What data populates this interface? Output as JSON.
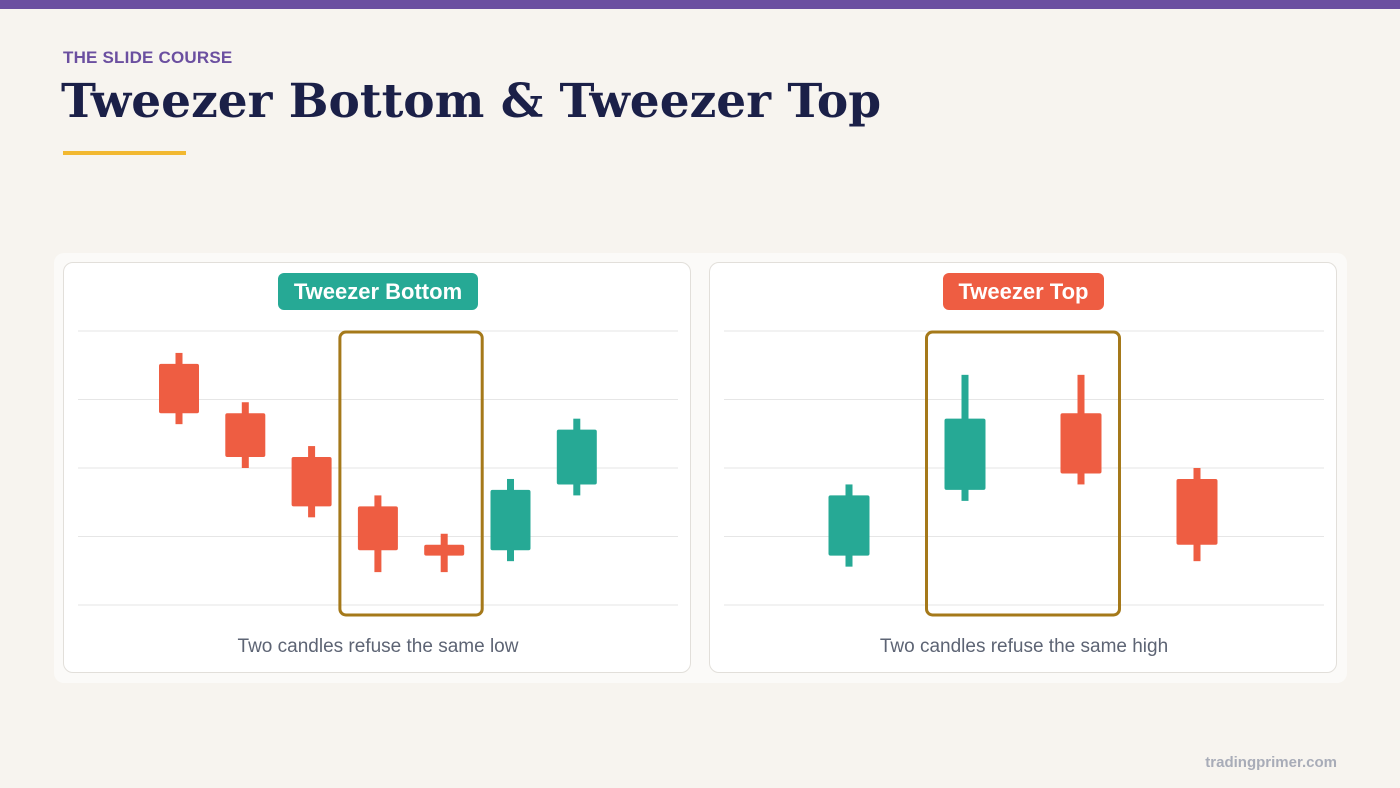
{
  "colors": {
    "accent": "#6b4fa0",
    "title": "#1b2048",
    "underline": "#f2b830",
    "bullish": "#26a995",
    "bearish": "#ee5d42",
    "highlight": "#a5791a",
    "grid": "#e6e6e6"
  },
  "header": {
    "kicker": "THE SLIDE COURSE",
    "title": "Tweezer Bottom & Tweezer Top"
  },
  "panels": [
    {
      "label": "Tweezer Bottom",
      "caption": "Two candles refuse the same low",
      "label_color": "#26a995"
    },
    {
      "label": "Tweezer Top",
      "caption": "Two candles refuse the same high",
      "label_color": "#ee5d42"
    }
  ],
  "chart_data": [
    {
      "type": "candlestick",
      "title": "Tweezer Bottom",
      "ylim": [
        0,
        100
      ],
      "candles": [
        {
          "open": 88,
          "close": 70,
          "high": 92,
          "low": 66,
          "direction": "bearish"
        },
        {
          "open": 70,
          "close": 54,
          "high": 74,
          "low": 50,
          "direction": "bearish"
        },
        {
          "open": 54,
          "close": 36,
          "high": 58,
          "low": 32,
          "direction": "bearish"
        },
        {
          "open": 36,
          "close": 20,
          "high": 40,
          "low": 12,
          "direction": "bearish"
        },
        {
          "open": 22,
          "close": 18,
          "high": 26,
          "low": 12,
          "direction": "bearish"
        },
        {
          "open": 20,
          "close": 42,
          "high": 46,
          "low": 16,
          "direction": "bullish"
        },
        {
          "open": 44,
          "close": 64,
          "high": 68,
          "low": 40,
          "direction": "bullish"
        }
      ],
      "highlight_candles": [
        3,
        4
      ]
    },
    {
      "type": "candlestick",
      "title": "Tweezer Top",
      "ylim": [
        0,
        100
      ],
      "candles": [
        {
          "open": 18,
          "close": 40,
          "high": 44,
          "low": 14,
          "direction": "bullish"
        },
        {
          "open": 42,
          "close": 68,
          "high": 84,
          "low": 38,
          "direction": "bullish"
        },
        {
          "open": 70,
          "close": 48,
          "high": 84,
          "low": 44,
          "direction": "bearish"
        },
        {
          "open": 46,
          "close": 22,
          "high": 50,
          "low": 16,
          "direction": "bearish"
        }
      ],
      "highlight_candles": [
        1,
        2
      ]
    }
  ],
  "footer": {
    "site": "tradingprimer.com"
  }
}
